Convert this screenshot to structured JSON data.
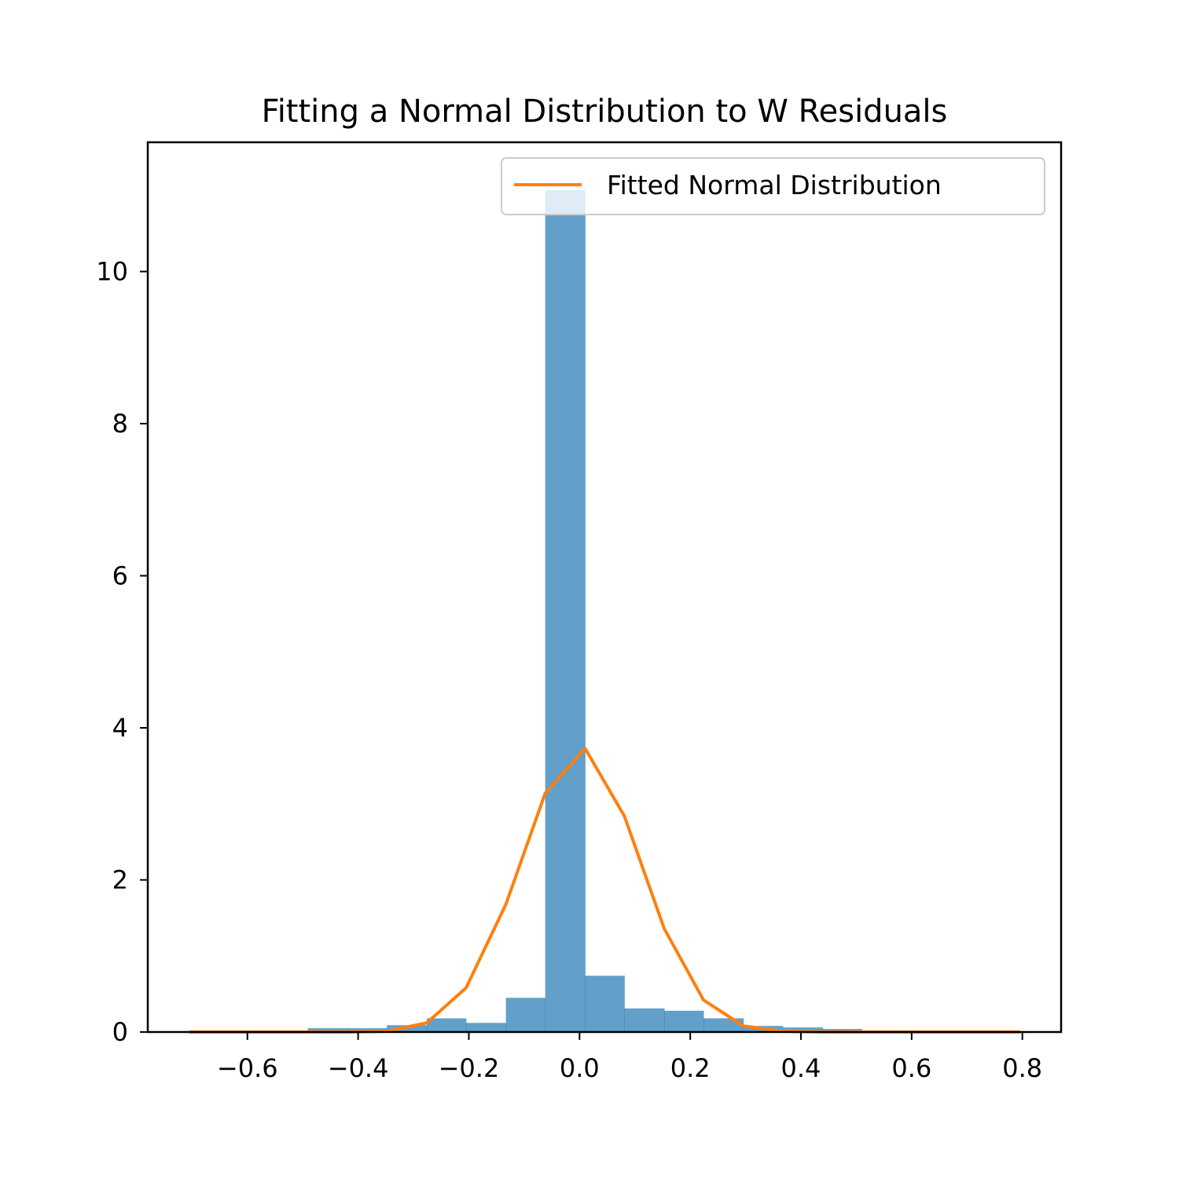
{
  "chart_data": {
    "type": "bar",
    "title": "Fitting a Normal Distribution to W Residuals",
    "xlabel": "",
    "ylabel": "",
    "xlim": [
      -0.78,
      0.87
    ],
    "ylim": [
      0,
      11.7
    ],
    "x_ticks": [
      -0.6,
      -0.4,
      -0.2,
      0.0,
      0.2,
      0.4,
      0.6,
      0.8
    ],
    "x_tick_labels": [
      "−0.6",
      "−0.4",
      "−0.2",
      "0.0",
      "0.2",
      "0.4",
      "0.6",
      "0.8"
    ],
    "y_ticks": [
      0,
      2,
      4,
      6,
      8,
      10
    ],
    "y_tick_labels": [
      "0",
      "2",
      "4",
      "6",
      "8",
      "10"
    ],
    "grid": false,
    "legend_position": "top-right",
    "histogram": {
      "color": "#1f77b4",
      "opacity": 0.7,
      "bin_edges": [
        -0.705,
        -0.634,
        -0.562,
        -0.491,
        -0.419,
        -0.348,
        -0.276,
        -0.205,
        -0.133,
        -0.062,
        0.01,
        0.081,
        0.153,
        0.224,
        0.296,
        0.367,
        0.439,
        0.51,
        0.582,
        0.653,
        0.725,
        0.796
      ],
      "values": [
        0.0,
        0.0,
        0.0,
        0.05,
        0.05,
        0.09,
        0.18,
        0.12,
        0.45,
        11.07,
        0.74,
        0.31,
        0.28,
        0.18,
        0.08,
        0.06,
        0.04,
        0.02,
        0.01,
        0.0,
        0.0
      ]
    },
    "series": [
      {
        "name": "Fitted Normal Distribution",
        "type": "line",
        "color": "#ff7f0e",
        "x": [
          -0.705,
          -0.634,
          -0.562,
          -0.491,
          -0.419,
          -0.348,
          -0.276,
          -0.205,
          -0.133,
          -0.062,
          0.01,
          0.081,
          0.153,
          0.224,
          0.296,
          0.367,
          0.439,
          0.51,
          0.582,
          0.653,
          0.725,
          0.796
        ],
        "y": [
          0.0,
          0.0,
          0.0,
          0.0,
          0.0,
          0.01,
          0.12,
          0.58,
          1.68,
          3.14,
          3.73,
          2.84,
          1.36,
          0.42,
          0.08,
          0.01,
          0.0,
          0.0,
          0.0,
          0.0,
          0.0,
          0.0
        ]
      }
    ]
  }
}
